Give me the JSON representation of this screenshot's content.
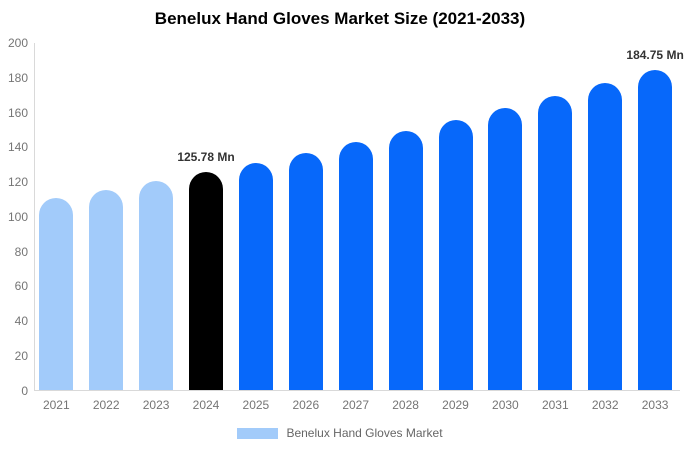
{
  "chart_data": {
    "type": "bar",
    "title": "Benelux Hand Gloves Market Size (2021-2033)",
    "xlabel": "",
    "ylabel": "",
    "ylim": [
      0,
      200
    ],
    "yticks": [
      0,
      20,
      40,
      60,
      80,
      100,
      120,
      140,
      160,
      180,
      200
    ],
    "grid": false,
    "legend_position": "bottom",
    "categories": [
      "2021",
      "2022",
      "2023",
      "2024",
      "2025",
      "2026",
      "2027",
      "2028",
      "2029",
      "2030",
      "2031",
      "2032",
      "2033"
    ],
    "series": [
      {
        "name": "Benelux Hand Gloves Market",
        "values": [
          110.6,
          115.5,
          120.5,
          125.78,
          131.3,
          137.0,
          143.0,
          149.3,
          155.8,
          162.6,
          169.7,
          177.1,
          184.75
        ]
      }
    ],
    "bar_colors": [
      "#A2CBFA",
      "#A2CBFA",
      "#A2CBFA",
      "#000000",
      "#0768FA",
      "#0768FA",
      "#0768FA",
      "#0768FA",
      "#0768FA",
      "#0768FA",
      "#0768FA",
      "#0768FA",
      "#0768FA"
    ],
    "point_labels": [
      "",
      "",
      "",
      "125.78 Mn",
      "",
      "",
      "",
      "",
      "",
      "",
      "",
      "",
      "184.75 Mn"
    ],
    "colors": {
      "historical": "#A2CBFA",
      "base_year": "#000000",
      "forecast": "#0768FA",
      "axis_line": "#D9D9D9",
      "tick_text": "#757575",
      "data_label_text": "#333333"
    },
    "legend": [
      {
        "label": "Benelux Hand Gloves Market",
        "color": "#A2CBFA"
      }
    ]
  }
}
